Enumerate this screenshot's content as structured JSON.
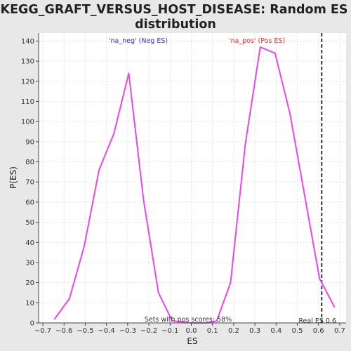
{
  "chart_data": {
    "type": "line",
    "title_line1": "KEGG_GRAFT_VERSUS_HOST_DISEASE: Random ES",
    "title_line2": "distribution",
    "xlabel": "ES",
    "ylabel": "P(ES)",
    "xlim": [
      -0.72,
      0.73
    ],
    "ylim": [
      0,
      144
    ],
    "x_ticks": [
      -0.7,
      -0.6,
      -0.5,
      -0.4,
      -0.3,
      -0.2,
      -0.1,
      0.0,
      0.1,
      0.2,
      0.3,
      0.4,
      0.5,
      0.6,
      0.7
    ],
    "x_tick_labels": [
      "−0.7",
      "−0.6",
      "−0.5",
      "−0.4",
      "−0.3",
      "−0.2",
      "−0.1",
      "0.0",
      "0.1",
      "0.2",
      "0.3",
      "0.4",
      "0.5",
      "0.6",
      "0.7"
    ],
    "y_ticks": [
      0,
      10,
      20,
      30,
      40,
      50,
      60,
      70,
      80,
      90,
      100,
      110,
      120,
      130,
      140
    ],
    "y_tick_labels": [
      "0",
      "10",
      "20",
      "30",
      "40",
      "50",
      "60",
      "70",
      "80",
      "90",
      "100",
      "110",
      "120",
      "130",
      "140"
    ],
    "grid": true,
    "series": [
      {
        "color": "#ee44ee",
        "x": [
          -0.645,
          -0.575,
          -0.505,
          -0.435,
          -0.365,
          -0.295,
          -0.225,
          -0.155,
          -0.09,
          0.0,
          0.08,
          0.12,
          0.185,
          0.255,
          0.325,
          0.395,
          0.465,
          0.535,
          0.605,
          0.675
        ],
        "y": [
          2,
          12,
          38,
          76,
          94,
          124,
          61,
          15,
          1,
          0,
          0,
          1,
          20,
          89,
          137,
          134,
          104,
          63,
          22,
          8
        ]
      }
    ],
    "marker_line": {
      "x": 0.615,
      "color": "#333333",
      "style": "dashed"
    },
    "annotations": {
      "neg_label": "'na_neg' (Neg ES)",
      "pos_label": "'na_pos' (Pos ES)",
      "sets_label": "Sets with pos scores: 58%",
      "real_es_label": "Real ES 0.6"
    },
    "colors": {
      "neg_label": "#3333cc",
      "pos_label": "#dd3333",
      "plot_bg": "#ffffff",
      "grid": "#e4e4e4"
    }
  }
}
